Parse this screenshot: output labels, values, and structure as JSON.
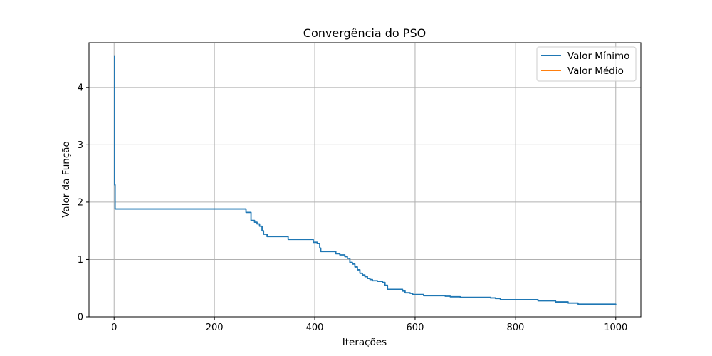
{
  "chart_data": {
    "type": "line",
    "title": "Convergência do PSO",
    "xlabel": "Iterações",
    "ylabel": "Valor da Função",
    "xlim": [
      -50,
      1050
    ],
    "ylim": [
      0,
      4.78
    ],
    "xticks": [
      0,
      200,
      400,
      600,
      800,
      1000
    ],
    "yticks": [
      0,
      1,
      2,
      3,
      4
    ],
    "grid": true,
    "legend_position": "top-right",
    "series": [
      {
        "name": "Valor Mínimo",
        "color": "#1f77b4",
        "step_points": [
          [
            0,
            4.55
          ],
          [
            1,
            2.3
          ],
          [
            2,
            1.88
          ],
          [
            262,
            1.88
          ],
          [
            263,
            1.82
          ],
          [
            272,
            1.82
          ],
          [
            273,
            1.68
          ],
          [
            280,
            1.65
          ],
          [
            285,
            1.62
          ],
          [
            290,
            1.58
          ],
          [
            295,
            1.5
          ],
          [
            298,
            1.44
          ],
          [
            305,
            1.4
          ],
          [
            345,
            1.4
          ],
          [
            347,
            1.35
          ],
          [
            395,
            1.35
          ],
          [
            397,
            1.3
          ],
          [
            405,
            1.28
          ],
          [
            410,
            1.2
          ],
          [
            412,
            1.14
          ],
          [
            440,
            1.14
          ],
          [
            442,
            1.1
          ],
          [
            450,
            1.08
          ],
          [
            460,
            1.05
          ],
          [
            465,
            1.02
          ],
          [
            470,
            0.95
          ],
          [
            475,
            0.92
          ],
          [
            480,
            0.87
          ],
          [
            485,
            0.82
          ],
          [
            490,
            0.76
          ],
          [
            495,
            0.73
          ],
          [
            500,
            0.7
          ],
          [
            505,
            0.67
          ],
          [
            510,
            0.65
          ],
          [
            515,
            0.63
          ],
          [
            525,
            0.62
          ],
          [
            535,
            0.6
          ],
          [
            540,
            0.55
          ],
          [
            545,
            0.48
          ],
          [
            570,
            0.48
          ],
          [
            575,
            0.45
          ],
          [
            580,
            0.42
          ],
          [
            590,
            0.41
          ],
          [
            595,
            0.39
          ],
          [
            615,
            0.39
          ],
          [
            617,
            0.37
          ],
          [
            655,
            0.37
          ],
          [
            660,
            0.36
          ],
          [
            670,
            0.35
          ],
          [
            690,
            0.34
          ],
          [
            745,
            0.34
          ],
          [
            750,
            0.33
          ],
          [
            760,
            0.32
          ],
          [
            770,
            0.3
          ],
          [
            840,
            0.3
          ],
          [
            845,
            0.28
          ],
          [
            875,
            0.28
          ],
          [
            880,
            0.26
          ],
          [
            900,
            0.26
          ],
          [
            905,
            0.24
          ],
          [
            920,
            0.24
          ],
          [
            925,
            0.22
          ],
          [
            990,
            0.22
          ],
          [
            1000,
            0.21
          ]
        ]
      },
      {
        "name": "Valor Médio",
        "color": "#ff7f0e",
        "step_points": []
      }
    ]
  }
}
